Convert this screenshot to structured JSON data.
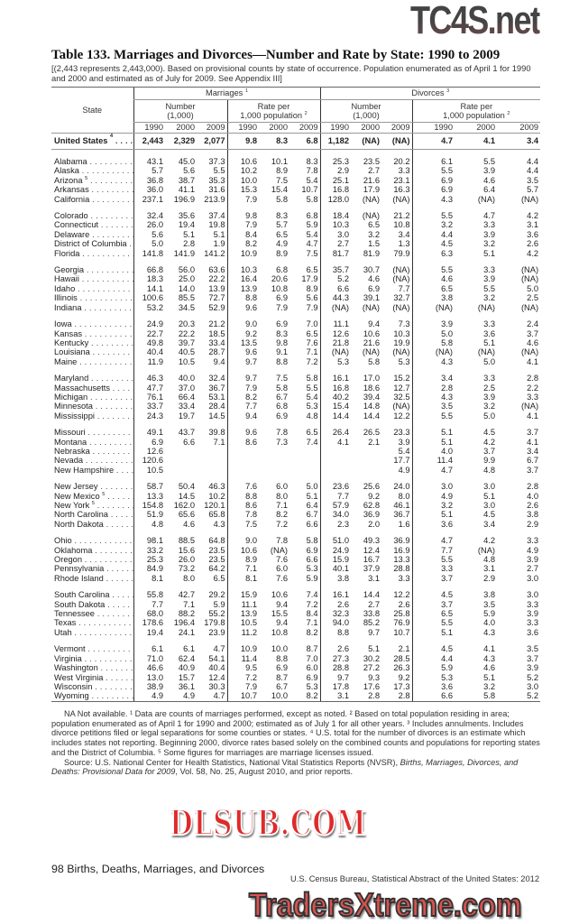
{
  "watermarks": {
    "top": "TC4S.net",
    "middle": "DLSUB.COM",
    "bottom": "TradersXtreme.com"
  },
  "title": "Table 133. Marriages and Divorces—Number and Rate by State: 1990 to 2009",
  "subtitle": "[(2,443 represents 2,443,000). Based on provisional counts by state of occurrence. Population enumerated as of April 1 for 1990 and 2000 and estimated as of July for 2009. See Appendix III]",
  "header": {
    "state": "State",
    "marriages": "Marriages",
    "marriages_sup": "1",
    "divorces": "Divorces",
    "divorces_sup": "3",
    "number": "Number",
    "number_unit": "(1,000)",
    "rate": "Rate per",
    "rate_unit": "1,000 population",
    "rate_sup": "2",
    "years": [
      "1990",
      "2000",
      "2009",
      "1990",
      "2000",
      "2009",
      "1990",
      "2000",
      "2009",
      "1990",
      "2000",
      "2009"
    ]
  },
  "us_row": {
    "state": "United States",
    "sup": "4",
    "values": [
      "2,443",
      "2,329",
      "2,077",
      "9.8",
      "8.3",
      "6.8",
      "1,182",
      "(NA)",
      "(NA)",
      "4.7",
      "4.1",
      "3.4"
    ]
  },
  "groups": [
    [
      [
        "Alabama",
        "",
        [
          "43.1",
          "45.0",
          "37.3",
          "10.6",
          "10.1",
          "8.3",
          "25.3",
          "23.5",
          "20.2",
          "6.1",
          "5.5",
          "4.4"
        ]
      ],
      [
        "Alaska",
        "",
        [
          "5.7",
          "5.6",
          "5.5",
          "10.2",
          "8.9",
          "7.8",
          "2.9",
          "2.7",
          "3.3",
          "5.5",
          "3.9",
          "4.4"
        ]
      ],
      [
        "Arizona",
        "5",
        [
          "36.8",
          "38.7",
          "35.3",
          "10.0",
          "7.5",
          "5.4",
          "25.1",
          "21.6",
          "23.1",
          "6.9",
          "4.6",
          "3.5"
        ]
      ],
      [
        "Arkansas",
        "",
        [
          "36.0",
          "41.1",
          "31.6",
          "15.3",
          "15.4",
          "10.7",
          "16.8",
          "17.9",
          "16.3",
          "6.9",
          "6.4",
          "5.7"
        ]
      ],
      [
        "California",
        "",
        [
          "237.1",
          "196.9",
          "213.9",
          "7.9",
          "5.8",
          "5.8",
          "128.0",
          "(NA)",
          "(NA)",
          "4.3",
          "(NA)",
          "(NA)"
        ]
      ]
    ],
    [
      [
        "Colorado",
        "",
        [
          "32.4",
          "35.6",
          "37.4",
          "9.8",
          "8.3",
          "6.8",
          "18.4",
          "(NA)",
          "21.2",
          "5.5",
          "4.7",
          "4.2"
        ]
      ],
      [
        "Connecticut",
        "",
        [
          "26.0",
          "19.4",
          "19.8",
          "7.9",
          "5.7",
          "5.9",
          "10.3",
          "6.5",
          "10.8",
          "3.2",
          "3.3",
          "3.1"
        ]
      ],
      [
        "Delaware",
        "",
        [
          "5.6",
          "5.1",
          "5.1",
          "8.4",
          "6.5",
          "5.4",
          "3.0",
          "3.2",
          "3.4",
          "4.4",
          "3.9",
          "3.6"
        ]
      ],
      [
        "District of Columbia",
        "",
        [
          "5.0",
          "2.8",
          "1.9",
          "8.2",
          "4.9",
          "4.7",
          "2.7",
          "1.5",
          "1.3",
          "4.5",
          "3.2",
          "2.6"
        ]
      ],
      [
        "Florida",
        "",
        [
          "141.8",
          "141.9",
          "141.2",
          "10.9",
          "8.9",
          "7.5",
          "81.7",
          "81.9",
          "79.9",
          "6.3",
          "5.1",
          "4.2"
        ]
      ]
    ],
    [
      [
        "Georgia",
        "",
        [
          "66.8",
          "56.0",
          "63.6",
          "10.3",
          "6.8",
          "6.5",
          "35.7",
          "30.7",
          "(NA)",
          "5.5",
          "3.3",
          "(NA)"
        ]
      ],
      [
        "Hawaii",
        "",
        [
          "18.3",
          "25.0",
          "22.2",
          "16.4",
          "20.6",
          "17.9",
          "5.2",
          "4.6",
          "(NA)",
          "4.6",
          "3.9",
          "(NA)"
        ]
      ],
      [
        "Idaho",
        "",
        [
          "14.1",
          "14.0",
          "13.9",
          "13.9",
          "10.8",
          "8.9",
          "6.6",
          "6.9",
          "7.7",
          "6.5",
          "5.5",
          "5.0"
        ]
      ],
      [
        "Illinois",
        "",
        [
          "100.6",
          "85.5",
          "72.7",
          "8.8",
          "6.9",
          "5.6",
          "44.3",
          "39.1",
          "32.7",
          "3.8",
          "3.2",
          "2.5"
        ]
      ],
      [
        "Indiana",
        "",
        [
          "53.2",
          "34.5",
          "52.9",
          "9.6",
          "7.9",
          "7.9",
          "(NA)",
          "(NA)",
          "(NA)",
          "(NA)",
          "(NA)",
          "(NA)"
        ]
      ]
    ],
    [
      [
        "Iowa",
        "",
        [
          "24.9",
          "20.3",
          "21.2",
          "9.0",
          "6.9",
          "7.0",
          "11.1",
          "9.4",
          "7.3",
          "3.9",
          "3.3",
          "2.4"
        ]
      ],
      [
        "Kansas",
        "",
        [
          "22.7",
          "22.2",
          "18.5",
          "9.2",
          "8.3",
          "6.5",
          "12.6",
          "10.6",
          "10.3",
          "5.0",
          "3.6",
          "3.7"
        ]
      ],
      [
        "Kentucky",
        "",
        [
          "49.8",
          "39.7",
          "33.4",
          "13.5",
          "9.8",
          "7.6",
          "21.8",
          "21.6",
          "19.9",
          "5.8",
          "5.1",
          "4.6"
        ]
      ],
      [
        "Louisiana",
        "",
        [
          "40.4",
          "40.5",
          "28.7",
          "9.6",
          "9.1",
          "7.1",
          "(NA)",
          "(NA)",
          "(NA)",
          "(NA)",
          "(NA)",
          "(NA)"
        ]
      ],
      [
        "Maine",
        "",
        [
          "11.9",
          "10.5",
          "9.4",
          "9.7",
          "8.8",
          "7.2",
          "5.3",
          "5.8",
          "5.3",
          "4.3",
          "5.0",
          "4.1"
        ]
      ]
    ],
    [
      [
        "Maryland",
        "",
        [
          "46.3",
          "40.0",
          "32.4",
          "9.7",
          "7.5",
          "5.8",
          "16.1",
          "17.0",
          "15.2",
          "3.4",
          "3.3",
          "2.8"
        ]
      ],
      [
        "Massachusetts",
        "",
        [
          "47.7",
          "37.0",
          "36.7",
          "7.9",
          "5.8",
          "5.5",
          "16.8",
          "18.6",
          "12.7",
          "2.8",
          "2.5",
          "2.2"
        ]
      ],
      [
        "Michigan",
        "",
        [
          "76.1",
          "66.4",
          "53.1",
          "8.2",
          "6.7",
          "5.4",
          "40.2",
          "39.4",
          "32.5",
          "4.3",
          "3.9",
          "3.3"
        ]
      ],
      [
        "Minnesota",
        "",
        [
          "33.7",
          "33.4",
          "28.4",
          "7.7",
          "6.8",
          "5.3",
          "15.4",
          "14.8",
          "(NA)",
          "3.5",
          "3.2",
          "(NA)"
        ]
      ],
      [
        "Mississippi",
        "",
        [
          "24.3",
          "19.7",
          "14.5",
          "9.4",
          "6.9",
          "4.8",
          "14.4",
          "14.4",
          "12.2",
          "5.5",
          "5.0",
          "4.1"
        ]
      ]
    ],
    [
      [
        "Missouri",
        "",
        [
          "49.1",
          "43.7",
          "39.8",
          "9.6",
          "7.8",
          "6.5",
          "26.4",
          "26.5",
          "23.3",
          "5.1",
          "4.5",
          "3.7"
        ]
      ],
      [
        "Montana",
        "",
        [
          "6.9",
          "6.6",
          "7.1",
          "8.6",
          "7.3",
          "7.4",
          "4.1",
          "2.1",
          "3.9",
          "5.1",
          "4.2",
          "4.1"
        ]
      ],
      [
        "Nebraska",
        "",
        [
          "12.6",
          "",
          "",
          "",
          "",
          "",
          "",
          "",
          "5.4",
          "4.0",
          "3.7",
          "3.4"
        ]
      ],
      [
        "Nevada",
        "",
        [
          "120.6",
          "",
          "",
          "",
          "",
          "",
          "",
          "",
          "17.7",
          "11.4",
          "9.9",
          "6.7"
        ]
      ],
      [
        "New Hampshire",
        "",
        [
          "10.5",
          "",
          "",
          "",
          "",
          "",
          "",
          "",
          "4.9",
          "4.7",
          "4.8",
          "3.7"
        ]
      ]
    ],
    [
      [
        "New Jersey",
        "",
        [
          "58.7",
          "50.4",
          "46.3",
          "7.6",
          "6.0",
          "5.0",
          "23.6",
          "25.6",
          "24.0",
          "3.0",
          "3.0",
          "2.8"
        ]
      ],
      [
        "New Mexico",
        "5",
        [
          "13.3",
          "14.5",
          "10.2",
          "8.8",
          "8.0",
          "5.1",
          "7.7",
          "9.2",
          "8.0",
          "4.9",
          "5.1",
          "4.0"
        ]
      ],
      [
        "New York",
        "5",
        [
          "154.8",
          "162.0",
          "120.1",
          "8.6",
          "7.1",
          "6.4",
          "57.9",
          "62.8",
          "46.1",
          "3.2",
          "3.0",
          "2.6"
        ]
      ],
      [
        "North Carolina",
        "",
        [
          "51.9",
          "65.6",
          "65.8",
          "7.8",
          "8.2",
          "6.7",
          "34.0",
          "36.9",
          "36.7",
          "5.1",
          "4.5",
          "3.8"
        ]
      ],
      [
        "North Dakota",
        "",
        [
          "4.8",
          "4.6",
          "4.3",
          "7.5",
          "7.2",
          "6.6",
          "2.3",
          "2.0",
          "1.6",
          "3.6",
          "3.4",
          "2.9"
        ]
      ]
    ],
    [
      [
        "Ohio",
        "",
        [
          "98.1",
          "88.5",
          "64.8",
          "9.0",
          "7.8",
          "5.8",
          "51.0",
          "49.3",
          "36.9",
          "4.7",
          "4.2",
          "3.3"
        ]
      ],
      [
        "Oklahoma",
        "",
        [
          "33.2",
          "15.6",
          "23.5",
          "10.6",
          "(NA)",
          "6.9",
          "24.9",
          "12.4",
          "16.9",
          "7.7",
          "(NA)",
          "4.9"
        ]
      ],
      [
        "Oregon",
        "",
        [
          "25.3",
          "26.0",
          "23.5",
          "8.9",
          "7.6",
          "6.6",
          "15.9",
          "16.7",
          "13.3",
          "5.5",
          "4.8",
          "3.9"
        ]
      ],
      [
        "Pennsylvania",
        "",
        [
          "84.9",
          "73.2",
          "64.2",
          "7.1",
          "6.0",
          "5.3",
          "40.1",
          "37.9",
          "28.8",
          "3.3",
          "3.1",
          "2.7"
        ]
      ],
      [
        "Rhode Island",
        "",
        [
          "8.1",
          "8.0",
          "6.5",
          "8.1",
          "7.6",
          "5.9",
          "3.8",
          "3.1",
          "3.3",
          "3.7",
          "2.9",
          "3.0"
        ]
      ]
    ],
    [
      [
        "South Carolina",
        "",
        [
          "55.8",
          "42.7",
          "29.2",
          "15.9",
          "10.6",
          "7.4",
          "16.1",
          "14.4",
          "12.2",
          "4.5",
          "3.8",
          "3.0"
        ]
      ],
      [
        "South Dakota",
        "",
        [
          "7.7",
          "7.1",
          "5.9",
          "11.1",
          "9.4",
          "7.2",
          "2.6",
          "2.7",
          "2.6",
          "3.7",
          "3.5",
          "3.3"
        ]
      ],
      [
        "Tennessee",
        "",
        [
          "68.0",
          "88.2",
          "55.2",
          "13.9",
          "15.5",
          "8.4",
          "32.3",
          "33.8",
          "25.8",
          "6.5",
          "5.9",
          "3.9"
        ]
      ],
      [
        "Texas",
        "",
        [
          "178.6",
          "196.4",
          "179.8",
          "10.5",
          "9.4",
          "7.1",
          "94.0",
          "85.2",
          "76.9",
          "5.5",
          "4.0",
          "3.3"
        ]
      ],
      [
        "Utah",
        "",
        [
          "19.4",
          "24.1",
          "23.9",
          "11.2",
          "10.8",
          "8.2",
          "8.8",
          "9.7",
          "10.7",
          "5.1",
          "4.3",
          "3.6"
        ]
      ]
    ],
    [
      [
        "Vermont",
        "",
        [
          "6.1",
          "6.1",
          "4.7",
          "10.9",
          "10.0",
          "8.7",
          "2.6",
          "5.1",
          "2.1",
          "4.5",
          "4.1",
          "3.5"
        ]
      ],
      [
        "Virginia",
        "",
        [
          "71.0",
          "62.4",
          "54.1",
          "11.4",
          "8.8",
          "7.0",
          "27.3",
          "30.2",
          "28.5",
          "4.4",
          "4.3",
          "3.7"
        ]
      ],
      [
        "Washington",
        "",
        [
          "46.6",
          "40.9",
          "40.4",
          "9.5",
          "6.9",
          "6.0",
          "28.8",
          "27.2",
          "26.3",
          "5.9",
          "4.6",
          "3.9"
        ]
      ],
      [
        "West Virginia",
        "",
        [
          "13.0",
          "15.7",
          "12.4",
          "7.2",
          "8.7",
          "6.9",
          "9.7",
          "9.3",
          "9.2",
          "5.3",
          "5.1",
          "5.2"
        ]
      ],
      [
        "Wisconsin",
        "",
        [
          "38.9",
          "36.1",
          "30.3",
          "7.9",
          "6.7",
          "5.3",
          "17.8",
          "17.6",
          "17.3",
          "3.6",
          "3.2",
          "3.0"
        ]
      ],
      [
        "Wyoming",
        "",
        [
          "4.9",
          "4.9",
          "4.7",
          "10.7",
          "10.0",
          "8.2",
          "3.1",
          "2.8",
          "2.8",
          "6.6",
          "5.8",
          "5.2"
        ]
      ]
    ]
  ],
  "notes": {
    "footnotes": "NA Not available. ¹ Data are counts of marriages performed, except as noted. ² Based on total population residing in area; population enumerated as of April 1 for 1990 and 2000; estimated as of July 1 for all other years. ³ Includes annulments. Includes divorce petitions filed or legal separations for some counties or states. ⁴ U.S. total for the number of divorces is an estimate which includes states not reporting. Beginning 2000, divorce rates based solely on the combined counts and populations for reporting states and the District of Columbia. ⁵ Some figures for marriages are marriage licenses issued.",
    "source_prefix": "Source: U.S. National Center for Health Statistics, National Vital Statistics Reports (NVSR), ",
    "source_title": "Births, Marriages, Divorces, and Deaths: Provisional Data for 2009",
    "source_suffix": ", Vol. 58, No. 25, August 2010, and prior reports."
  },
  "footer": {
    "page": "98  Births, Deaths, Marriages, and Divorces",
    "publication": "U.S. Census Bureau, Statistical Abstract of the United States: 2012"
  }
}
